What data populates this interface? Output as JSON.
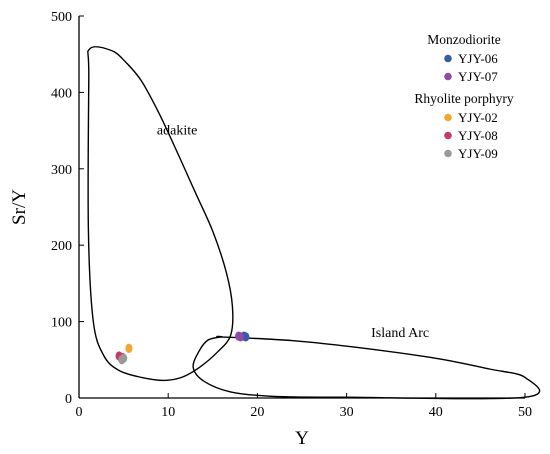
{
  "chart_data": {
    "type": "scatter",
    "title": "",
    "xlabel": "Y",
    "ylabel": "Sr/Y",
    "xlim": [
      0,
      50
    ],
    "ylim": [
      0,
      500
    ],
    "xticks": [
      0,
      10,
      20,
      30,
      40,
      50
    ],
    "yticks": [
      0,
      100,
      200,
      300,
      400,
      500
    ],
    "grid": false,
    "legend_position": "top-right",
    "legend_groups": [
      {
        "title": "Monzodiorite",
        "series": [
          {
            "name": "YJY-06",
            "color": "#3a5aa8",
            "points": [
              [
                18.5,
                81
              ],
              [
                18.7,
                80
              ]
            ]
          },
          {
            "name": "YJY-07",
            "color": "#8e4aa6",
            "points": [
              [
                17.9,
                81
              ],
              [
                18.1,
                80
              ]
            ]
          }
        ]
      },
      {
        "title": "Rhyolite porphyry",
        "series": [
          {
            "name": "YJY-02",
            "color": "#f0a830",
            "points": [
              [
                5.6,
                65
              ]
            ]
          },
          {
            "name": "YJY-08",
            "color": "#c43a6a",
            "points": [
              [
                4.5,
                55
              ],
              [
                4.9,
                53
              ]
            ]
          },
          {
            "name": "YJY-09",
            "color": "#999999",
            "points": [
              [
                5.0,
                52
              ],
              [
                4.8,
                50
              ]
            ]
          }
        ]
      }
    ],
    "fields": [
      {
        "name": "adakite",
        "label_at": [
          11,
          345
        ],
        "outline": [
          [
            3.6,
            455
          ],
          [
            5.2,
            440
          ],
          [
            7,
            415
          ],
          [
            9,
            372
          ],
          [
            11,
            322
          ],
          [
            13,
            270
          ],
          [
            15,
            218
          ],
          [
            16.5,
            165
          ],
          [
            17.2,
            120
          ],
          [
            17,
            82
          ],
          [
            15.5,
            60
          ],
          [
            13.5,
            40
          ],
          [
            11.5,
            27
          ],
          [
            9.5,
            23
          ],
          [
            7,
            27
          ],
          [
            4.5,
            36
          ],
          [
            2.8,
            55
          ],
          [
            1.6,
            100
          ],
          [
            1.05,
            220
          ],
          [
            1.1,
            420
          ],
          [
            1.2,
            457
          ]
        ]
      },
      {
        "name": "Island Arc",
        "label_at": [
          36,
          80
        ],
        "outline": [
          [
            16,
            80
          ],
          [
            24,
            75
          ],
          [
            32,
            65
          ],
          [
            40,
            52
          ],
          [
            46,
            38
          ],
          [
            50,
            27
          ],
          [
            50,
            1
          ],
          [
            30,
            1
          ],
          [
            22,
            2
          ],
          [
            17,
            8
          ],
          [
            14,
            22
          ],
          [
            12.8,
            40
          ],
          [
            13.5,
            62
          ],
          [
            14.5,
            76
          ],
          [
            16,
            80
          ]
        ]
      }
    ]
  }
}
